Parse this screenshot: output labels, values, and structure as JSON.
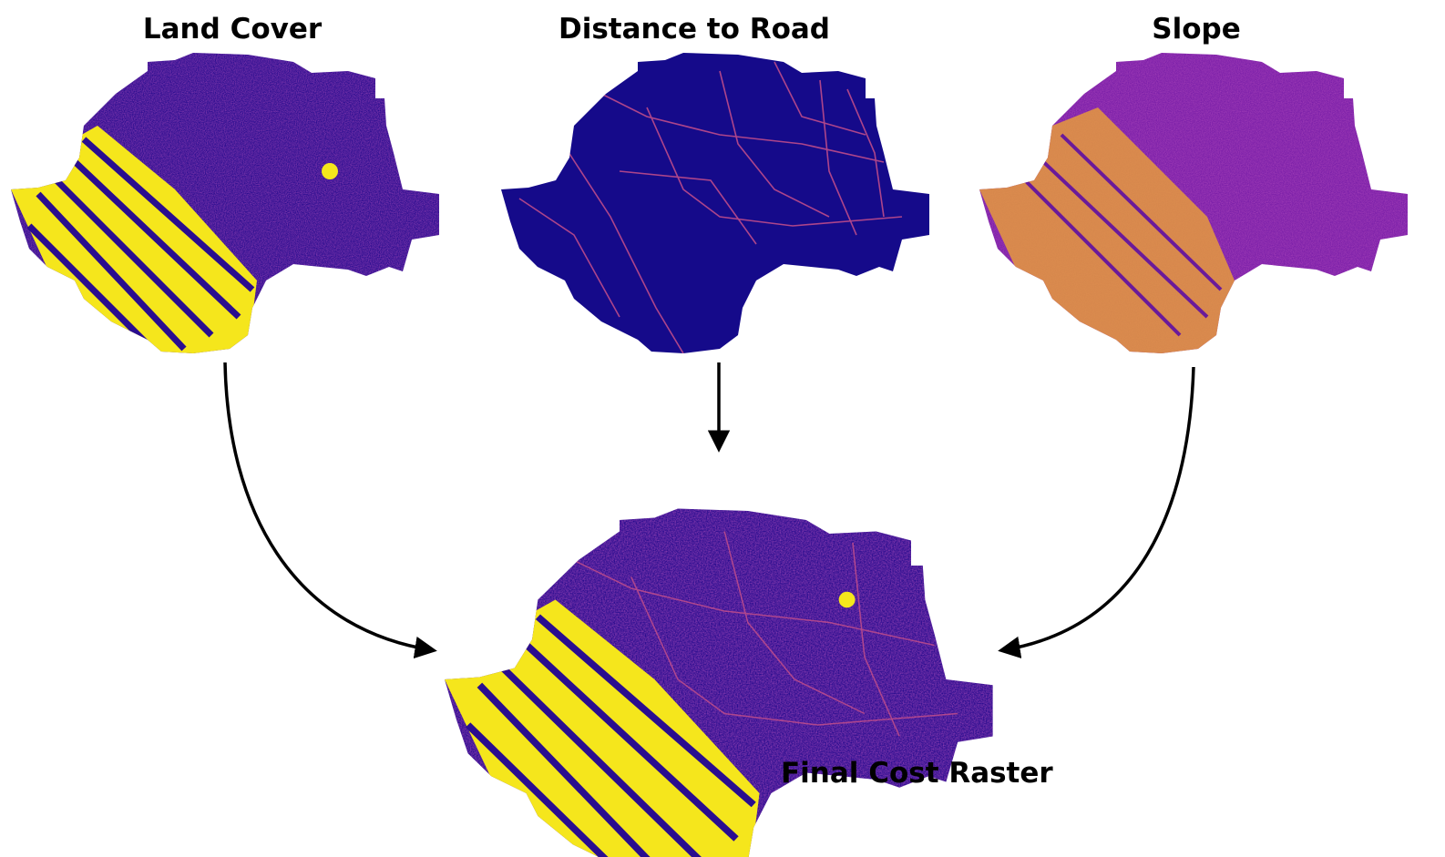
{
  "panels": {
    "land_cover": {
      "title": "Land Cover"
    },
    "distance_to_road": {
      "title": "Distance to Road"
    },
    "slope": {
      "title": "Slope"
    },
    "final": {
      "title": "Final Cost Raster"
    }
  },
  "colors": {
    "background": "#ffffff",
    "low": "#1a0a8c",
    "mid": "#7a1fa8",
    "mid_high": "#c84a88",
    "high": "#f7ee1f",
    "arrow": "#000000"
  }
}
